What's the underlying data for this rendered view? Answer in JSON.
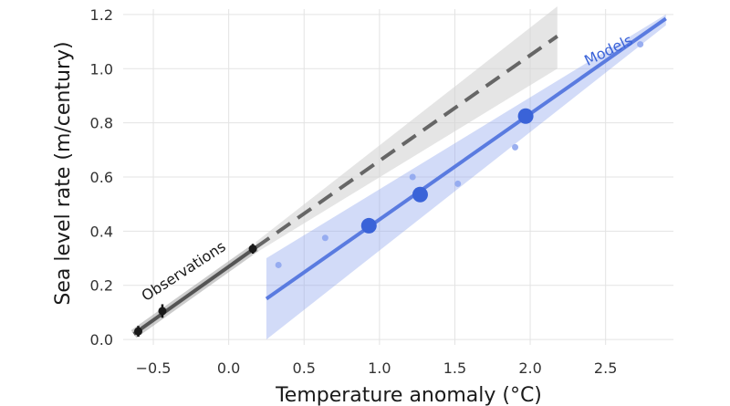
{
  "chart_data": {
    "type": "scatter",
    "xlabel": "Temperature anomaly (°C)",
    "ylabel": "Sea level rate (m/century)",
    "xlim": [
      -0.7,
      2.95
    ],
    "ylim": [
      -0.02,
      1.22
    ],
    "xticks": [
      "−0.5",
      "0.0",
      "0.5",
      "1.0",
      "1.5",
      "2.0",
      "2.5"
    ],
    "xtick_values": [
      -0.5,
      0.0,
      0.5,
      1.0,
      1.5,
      2.0,
      2.5
    ],
    "yticks": [
      "0.0",
      "0.2",
      "0.4",
      "0.6",
      "0.8",
      "1.0",
      "1.2"
    ],
    "ytick_values": [
      0.0,
      0.2,
      0.4,
      0.6,
      0.8,
      1.0,
      1.2
    ],
    "grid": true,
    "series": [
      {
        "name": "Observations",
        "color": "#1a1a1a",
        "points": [
          {
            "x": -0.6,
            "y": 0.03,
            "err": 0.02
          },
          {
            "x": -0.44,
            "y": 0.105,
            "err": 0.025
          },
          {
            "x": 0.16,
            "y": 0.335,
            "err": 0.018
          }
        ],
        "fit": {
          "x": [
            -0.63,
            0.18
          ],
          "y": [
            0.02,
            0.34
          ]
        },
        "extrapolation": {
          "x": [
            0.18,
            2.18
          ],
          "y": [
            0.34,
            1.12
          ],
          "band_upper": [
            0.36,
            1.23
          ],
          "band_lower": [
            0.32,
            1.0
          ]
        }
      },
      {
        "name": "Models",
        "color": "#3a63d8",
        "means": [
          {
            "x": 0.93,
            "y": 0.42
          },
          {
            "x": 1.27,
            "y": 0.535
          },
          {
            "x": 1.97,
            "y": 0.825
          }
        ],
        "members": [
          {
            "x": 0.33,
            "y": 0.275
          },
          {
            "x": 0.64,
            "y": 0.375
          },
          {
            "x": 1.22,
            "y": 0.6
          },
          {
            "x": 1.52,
            "y": 0.575
          },
          {
            "x": 1.9,
            "y": 0.71
          },
          {
            "x": 2.73,
            "y": 1.09
          }
        ],
        "fit": {
          "x": [
            0.25,
            2.9
          ],
          "y": [
            0.15,
            1.185
          ]
        },
        "band": {
          "x": [
            0.25,
            2.9
          ],
          "upper": [
            0.3,
            1.2
          ],
          "lower": [
            0.0,
            1.16
          ]
        }
      }
    ],
    "annotations": [
      {
        "text": "Observations",
        "x": -0.55,
        "y": 0.14,
        "angle": -33,
        "color": "#1a1a1a"
      },
      {
        "text": "Models",
        "x": 2.38,
        "y": 1.01,
        "angle": -26,
        "color": "#3a63d8"
      }
    ]
  }
}
